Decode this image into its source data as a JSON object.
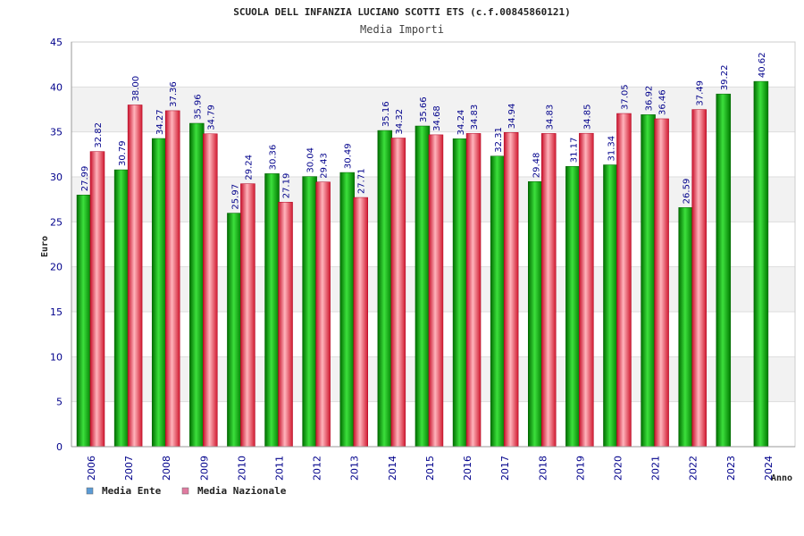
{
  "chart_data": {
    "type": "bar",
    "title": "SCUOLA DELL INFANZIA LUCIANO SCOTTI ETS (c.f.00845860121)",
    "subtitle": "Media Importi",
    "xlabel": "Anno",
    "ylabel": "Euro",
    "ylim": [
      0,
      45
    ],
    "ytick_step": 5,
    "grid": true,
    "legend_position": "bottom-left",
    "categories": [
      "2006",
      "2007",
      "2008",
      "2009",
      "2010",
      "2011",
      "2012",
      "2013",
      "2014",
      "2015",
      "2016",
      "2017",
      "2018",
      "2019",
      "2020",
      "2021",
      "2022",
      "2023",
      "2024"
    ],
    "series": [
      {
        "name": "Media Ente",
        "legend_color": "#5b9bd5",
        "bar_color": "#00b000",
        "values": [
          27.99,
          30.79,
          34.27,
          35.96,
          25.97,
          30.36,
          30.04,
          30.49,
          35.16,
          35.66,
          34.24,
          32.31,
          29.48,
          31.17,
          31.34,
          36.92,
          26.59,
          39.22,
          40.62
        ],
        "labels": [
          "27.99",
          "30.79",
          "34.27",
          "35.96",
          "25.97",
          "30.36",
          "30.04",
          "30.49",
          "35.16",
          "35.66",
          "34.24",
          "32.31",
          "29.48",
          "31.17",
          "31.34",
          "36.92",
          "26.59",
          "39.22",
          "40.62"
        ]
      },
      {
        "name": "Media Nazionale",
        "legend_color": "#e07ba0",
        "bar_color": "#e8283c",
        "values": [
          32.82,
          38.0,
          37.36,
          34.79,
          29.24,
          27.19,
          29.43,
          27.71,
          34.32,
          34.68,
          34.83,
          34.94,
          34.83,
          34.85,
          37.05,
          36.46,
          37.49,
          null,
          null
        ],
        "labels": [
          "32.82",
          "38.00",
          "37.36",
          "34.79",
          "29.24",
          "27.19",
          "29.43",
          "27.71",
          "34.32",
          "34.68",
          "34.83",
          "34.94",
          "34.83",
          "34.85",
          "37.05",
          "36.46",
          "37.49",
          null,
          null
        ]
      }
    ]
  }
}
